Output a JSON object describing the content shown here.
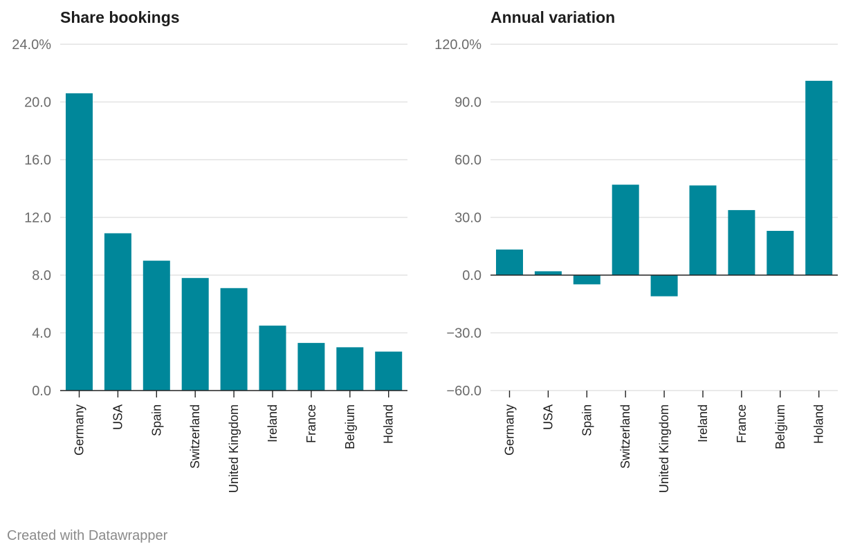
{
  "footer": {
    "credit": "Created with Datawrapper"
  },
  "colors": {
    "bar": "#00879A",
    "grid": "#e2e2e2",
    "axis": "#222222"
  },
  "chart_data": [
    {
      "type": "bar",
      "title": "Share bookings",
      "xlabel": "",
      "ylabel": "",
      "categories": [
        "Germany",
        "USA",
        "Spain",
        "Switzerland",
        "United Kingdom",
        "Ireland",
        "France",
        "Belgium",
        "Holand"
      ],
      "values": [
        20.6,
        10.9,
        9.0,
        7.8,
        7.1,
        4.5,
        3.3,
        3.0,
        2.7
      ],
      "ylim": [
        0,
        24
      ],
      "yticks": [
        0,
        4,
        8,
        12,
        16,
        20,
        24
      ],
      "ytick_labels": [
        "0.0",
        "4.0",
        "8.0",
        "12.0",
        "16.0",
        "20.0",
        "24.0%"
      ],
      "grid": true
    },
    {
      "type": "bar",
      "title": "Annual variation",
      "xlabel": "",
      "ylabel": "",
      "categories": [
        "Germany",
        "USA",
        "Spain",
        "Switzerland",
        "United Kingdom",
        "Ireland",
        "France",
        "Belgium",
        "Holand"
      ],
      "values": [
        13.3,
        2.0,
        -4.8,
        47.0,
        -11.0,
        46.6,
        33.8,
        23.0,
        101.0
      ],
      "ylim": [
        -60,
        120
      ],
      "yticks": [
        -60,
        -30,
        0,
        30,
        60,
        90,
        120
      ],
      "ytick_labels": [
        "−60.0",
        "−30.0",
        "0.0",
        "30.0",
        "60.0",
        "90.0",
        "120.0%"
      ],
      "grid": true
    }
  ]
}
